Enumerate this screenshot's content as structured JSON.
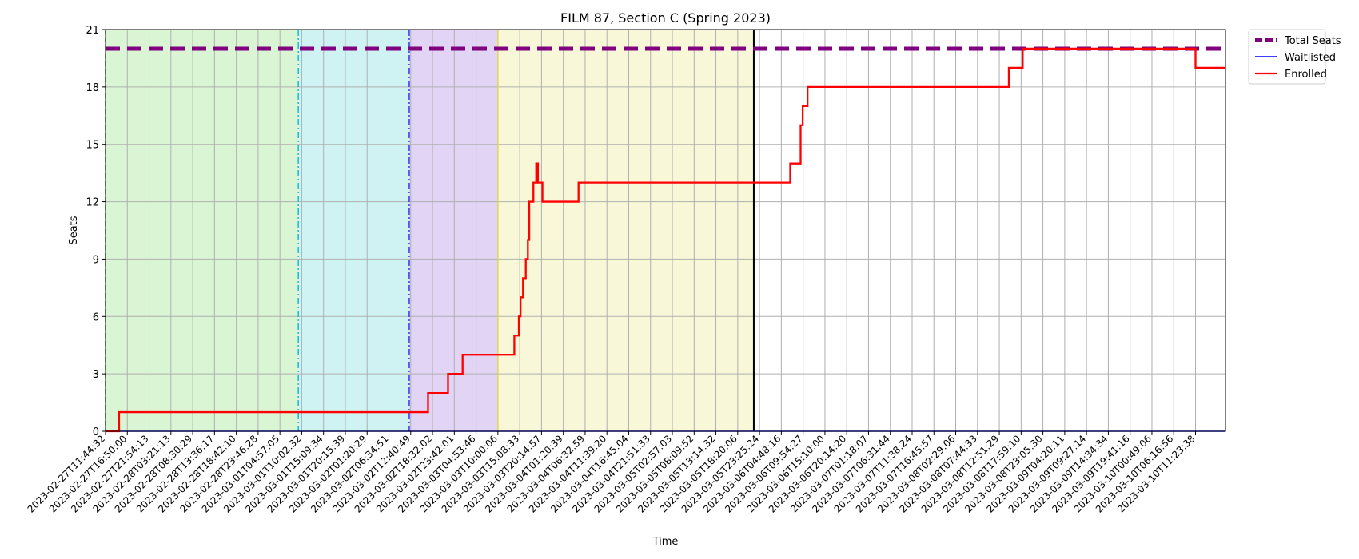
{
  "chart_data": {
    "type": "line",
    "title": "FILM 87, Section C (Spring 2023)",
    "xlabel": "Time",
    "ylabel": "Seats",
    "ylim": [
      0,
      21
    ],
    "yticks": [
      0,
      3,
      6,
      9,
      12,
      15,
      18,
      21
    ],
    "xlim": [
      "2023-02-27T11:44:32",
      "2023-03-10T16:42:00"
    ],
    "xtick_labels": [
      "2023-02-27T11:44:32",
      "2023-02-27T16:50:00",
      "2023-02-27T21:54:13",
      "2023-02-28T03:21:13",
      "2023-02-28T08:30:29",
      "2023-02-28T13:36:17",
      "2023-02-28T18:42:10",
      "2023-02-28T23:46:28",
      "2023-03-01T04:57:05",
      "2023-03-01T10:02:32",
      "2023-03-01T15:09:34",
      "2023-03-01T20:15:39",
      "2023-03-02T01:20:29",
      "2023-03-02T06:34:51",
      "2023-03-02T12:40:49",
      "2023-03-02T18:32:02",
      "2023-03-02T23:42:01",
      "2023-03-03T04:53:46",
      "2023-03-03T10:00:06",
      "2023-03-03T15:08:33",
      "2023-03-03T20:14:57",
      "2023-03-04T01:20:39",
      "2023-03-04T06:32:59",
      "2023-03-04T11:39:20",
      "2023-03-04T16:45:04",
      "2023-03-04T21:51:33",
      "2023-03-05T02:57:03",
      "2023-03-05T08:09:52",
      "2023-03-05T13:14:32",
      "2023-03-05T18:20:06",
      "2023-03-05T23:25:24",
      "2023-03-06T04:48:16",
      "2023-03-06T09:54:27",
      "2023-03-06T15:10:00",
      "2023-03-06T20:14:20",
      "2023-03-07T01:18:07",
      "2023-03-07T06:31:44",
      "2023-03-07T11:38:24",
      "2023-03-07T16:45:57",
      "2023-03-08T02:29:06",
      "2023-03-08T07:44:33",
      "2023-03-08T12:51:29",
      "2023-03-08T17:59:10",
      "2023-03-08T23:05:30",
      "2023-03-09T04:20:11",
      "2023-03-09T09:27:14",
      "2023-03-09T14:34:34",
      "2023-03-09T19:41:16",
      "2023-03-10T00:49:06",
      "2023-03-10T06:16:56",
      "2023-03-10T11:23:38"
    ],
    "grid": true,
    "legend_position": "outside top-right",
    "phases": [
      {
        "start": "2023-02-27T11:44:32",
        "end": "2023-03-01T10:02:32",
        "color": "#d9f5d3",
        "edge_color": "#00cc00",
        "edge_style": "dashed"
      },
      {
        "start": "2023-03-01T10:02:32",
        "end": "2023-03-02T12:40:49",
        "color": "#cff2f3",
        "edge_color": "#00bcd4",
        "edge_style": "dashdot"
      },
      {
        "start": "2023-03-02T12:40:49",
        "end": "2023-03-03T10:00:06",
        "color": "#e1d4f5",
        "edge_color": "#2a2af0",
        "edge_style": "dashdot"
      },
      {
        "start": "2023-03-03T10:00:06",
        "end": "2023-03-05T23:25:24",
        "color": "#f8f8d8",
        "edge_color": "#e6d94a",
        "edge_style": "solid"
      }
    ],
    "markers": [
      {
        "x": "2023-03-05T23:25:24",
        "color": "#000000",
        "style": "solid"
      }
    ],
    "series": [
      {
        "name": "Total Seats",
        "color": "#800080",
        "style": "dashed",
        "x": [
          "2023-02-27T11:44:32",
          "2023-03-10T16:42:00"
        ],
        "values": [
          20,
          20
        ]
      },
      {
        "name": "Waitlisted",
        "color": "#0000ff",
        "style": "solid",
        "x": [
          "2023-02-27T11:44:32",
          "2023-03-10T16:42:00"
        ],
        "values": [
          0,
          0
        ]
      },
      {
        "name": "Enrolled",
        "color": "#ff0000",
        "style": "solid",
        "x": [
          "2023-02-27T11:44:32",
          "2023-02-27T15:00:00",
          "2023-03-02T17:12:00",
          "2023-03-02T22:00:00",
          "2023-03-03T01:30:00",
          "2023-03-03T12:00:00",
          "2023-03-03T13:55:00",
          "2023-03-03T15:00:00",
          "2023-03-03T15:25:00",
          "2023-03-03T16:00:00",
          "2023-03-03T16:40:00",
          "2023-03-03T17:10:00",
          "2023-03-03T17:30:00",
          "2023-03-03T18:30:00",
          "2023-03-03T19:10:00",
          "2023-03-03T19:35:00",
          "2023-03-03T20:40:00",
          "2023-03-04T05:20:00",
          "2023-03-06T08:10:00",
          "2023-03-06T10:40:00",
          "2023-03-06T11:10:00",
          "2023-03-06T12:20:00",
          "2023-03-08T12:40:00",
          "2023-03-08T16:00:00",
          "2023-03-10T09:30:00",
          "2023-03-10T16:42:00"
        ],
        "values": [
          0,
          1,
          2,
          3,
          4,
          4,
          5,
          6,
          7,
          8,
          9,
          10,
          12,
          13,
          14,
          13,
          12,
          13,
          14,
          16,
          17,
          18,
          19,
          20,
          19,
          19
        ]
      }
    ]
  }
}
